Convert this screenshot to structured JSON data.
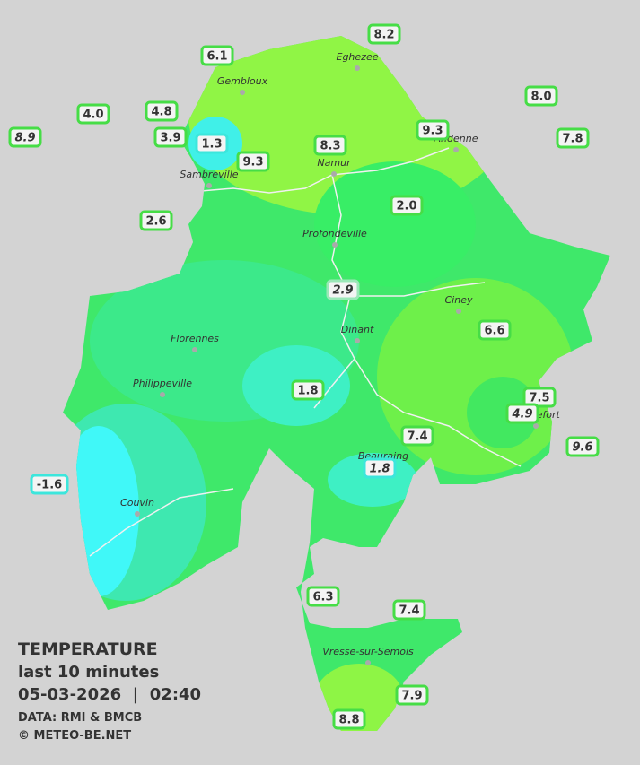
{
  "legend": {
    "title": "TEMPERATURE",
    "subtitle": "last 10 minutes",
    "datetime": "05-03-2026  |  02:40",
    "source": "DATA: RMI & BMCB",
    "copyright": "© METEO-BE.NET"
  },
  "cities": [
    "Eghezee",
    "Gembloux",
    "Andenne",
    "Namur",
    "Sambreville",
    "Profondeville",
    "Ciney",
    "Dinant",
    "Florennes",
    "Philippeville",
    "Rochefort",
    "Beauraing",
    "Couvin",
    "Vresse-sur-Semois"
  ],
  "stations": [
    {
      "label": "6.1",
      "color": "#46dd46"
    },
    {
      "label": "8.2",
      "color": "#46dd46"
    },
    {
      "label": "4.0",
      "color": "#46dd46"
    },
    {
      "label": "4.8",
      "color": "#46dd46"
    },
    {
      "label": "8.9",
      "color": "#46dd46"
    },
    {
      "label": "3.9",
      "color": "#46dd46"
    },
    {
      "label": "1.3",
      "color": "#3ce6dc"
    },
    {
      "label": "9.3",
      "color": "#46dd46"
    },
    {
      "label": "8.3",
      "color": "#46dd46"
    },
    {
      "label": "9.3",
      "color": "#46dd46"
    },
    {
      "label": "8.0",
      "color": "#46dd46"
    },
    {
      "label": "7.8",
      "color": "#46dd46"
    },
    {
      "label": "2.6",
      "color": "#46dd46"
    },
    {
      "label": "2.0",
      "color": "#46dd46"
    },
    {
      "label": "2.9",
      "color": "#9be8b8"
    },
    {
      "label": "6.6",
      "color": "#46dd46"
    },
    {
      "label": "1.8",
      "color": "#46dd46"
    },
    {
      "label": "7.5",
      "color": "#46dd46"
    },
    {
      "label": "4.9",
      "color": "#46dd46"
    },
    {
      "label": "7.4",
      "color": "#46dd46"
    },
    {
      "label": "9.6",
      "color": "#46dd46"
    },
    {
      "label": "1.8",
      "color": "#3ce6dc"
    },
    {
      "label": "-1.6",
      "color": "#3ce6dc"
    },
    {
      "label": "6.3",
      "color": "#46dd46"
    },
    {
      "label": "7.4",
      "color": "#46dd46"
    },
    {
      "label": "7.9",
      "color": "#46dd46"
    },
    {
      "label": "8.8",
      "color": "#46dd46"
    }
  ]
}
